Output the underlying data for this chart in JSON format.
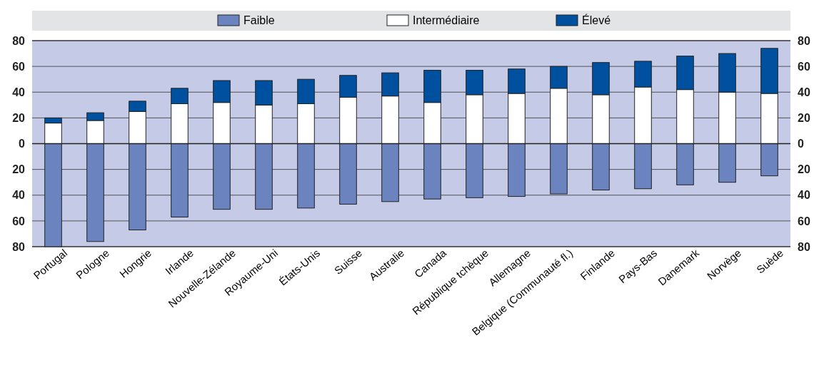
{
  "chart_data": {
    "type": "bar",
    "stacked": true,
    "categories": [
      "Portugal",
      "Pologne",
      "Hongrie",
      "Irlande",
      "Nouvelle-Zélande",
      "Royaume-Uni",
      "États-Unis",
      "Suisse",
      "Australie",
      "Canada",
      "République tchèque",
      "Allemagne",
      "Belgique (Communauté fl.)",
      "Finlande",
      "Pays-Bas",
      "Danemark",
      "Norvège",
      "Suède"
    ],
    "series": [
      {
        "name": "Faible",
        "color": "#6b84c0",
        "values": [
          -80,
          -76,
          -67,
          -57,
          -51,
          -51,
          -50,
          -47,
          -45,
          -43,
          -42,
          -41,
          -39,
          -36,
          -35,
          -32,
          -30,
          -25
        ]
      },
      {
        "name": "Intermédiaire",
        "color": "#ffffff",
        "values": [
          16,
          18,
          25,
          31,
          32,
          30,
          31,
          36,
          37,
          32,
          38,
          39,
          43,
          38,
          44,
          42,
          40,
          39
        ]
      },
      {
        "name": "Élevé",
        "color": "#0050a0",
        "values": [
          4,
          6,
          8,
          12,
          17,
          19,
          19,
          17,
          18,
          25,
          19,
          19,
          17,
          25,
          20,
          26,
          30,
          35
        ]
      }
    ],
    "ylim": [
      -80,
      80
    ],
    "yticks": [
      {
        "value": -80,
        "label": "80"
      },
      {
        "value": -60,
        "label": "60"
      },
      {
        "value": -40,
        "label": "40"
      },
      {
        "value": -20,
        "label": "20"
      },
      0,
      20,
      40,
      60,
      80
    ],
    "y2lim": [
      -80,
      80
    ],
    "y2ticks": [
      {
        "value": -80,
        "label": "80"
      },
      {
        "value": -60,
        "label": "60"
      },
      {
        "value": -40,
        "label": "40"
      },
      {
        "value": -20,
        "label": "20"
      },
      0,
      20,
      40,
      60,
      80
    ],
    "grid": "y",
    "legend": "top"
  }
}
